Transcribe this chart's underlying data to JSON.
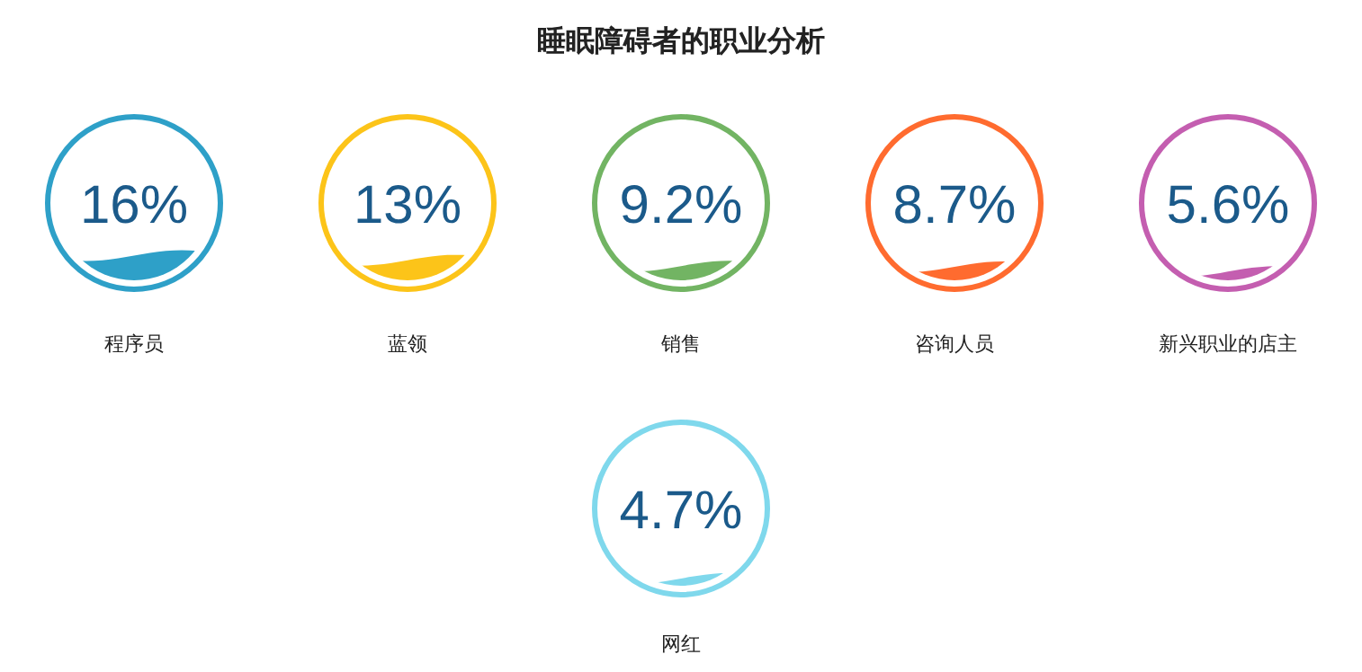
{
  "chart_data": {
    "type": "other",
    "title": "睡眠障碍者的职业分析",
    "categories": [
      "程序员",
      "蓝领",
      "销售",
      "咨询人员",
      "新兴职业的店主",
      "网红"
    ],
    "values": [
      16,
      13,
      9.2,
      8.7,
      5.6,
      4.7
    ],
    "value_labels": [
      "16%",
      "13%",
      "9.2%",
      "8.7%",
      "5.6%",
      "4.7%"
    ],
    "colors": [
      "#2ea0c8",
      "#fcc419",
      "#72b463",
      "#ff6b2f",
      "#c45eb0",
      "#7fd8ec"
    ]
  }
}
